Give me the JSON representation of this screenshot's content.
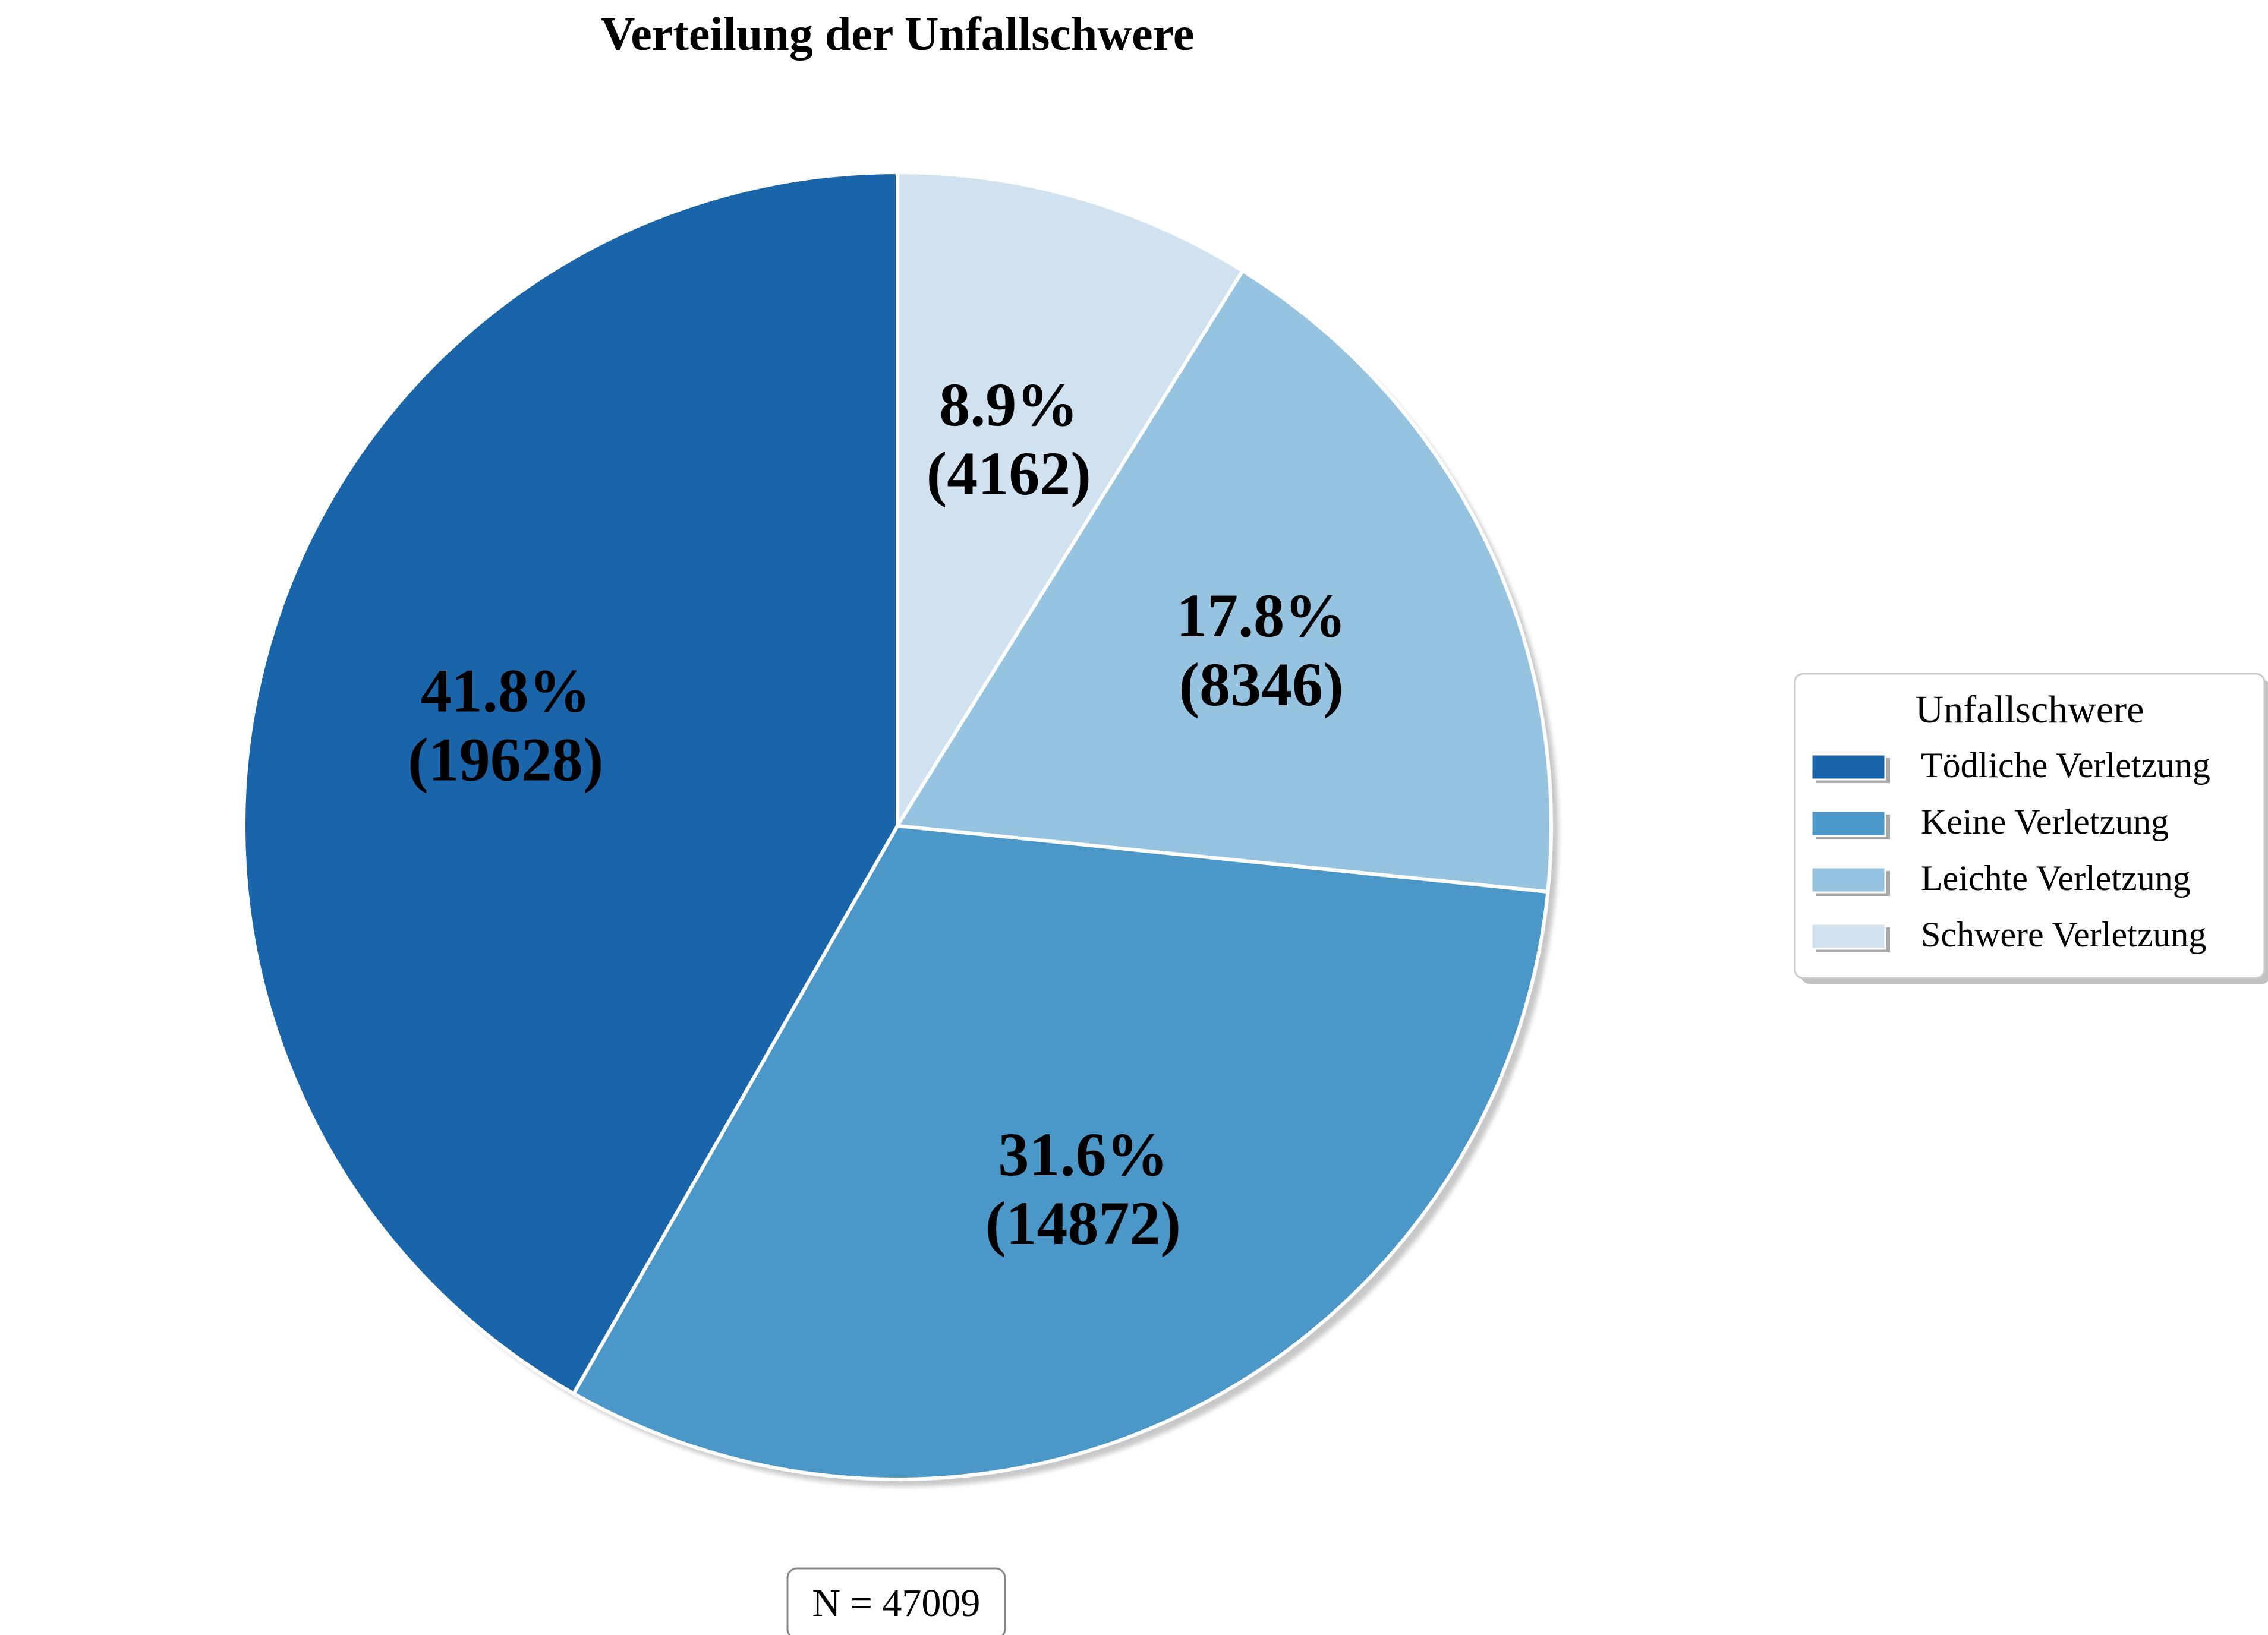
{
  "chart_data": {
    "type": "pie",
    "title": "Verteilung der Unfallschwere",
    "total": 47009,
    "footnote": "N = 47009",
    "slices": [
      {
        "label": "Schwere Verletzung",
        "value": 4162,
        "percent": "8.9%",
        "count_text": "(4162)",
        "color": "#d0e1f0"
      },
      {
        "label": "Leichte Verletzung",
        "value": 8346,
        "percent": "17.8%",
        "count_text": "(8346)",
        "color": "#96c3e0"
      },
      {
        "label": "Keine Verletzung",
        "value": 14872,
        "percent": "31.6%",
        "count_text": "(14872)",
        "color": "#4a97c8"
      },
      {
        "label": "Tödliche Verletzung",
        "value": 19628,
        "percent": "41.8%",
        "count_text": "(19628)",
        "color": "#1a64a9"
      }
    ],
    "start_angle": "12 o'clock",
    "direction": "clockwise",
    "legend": {
      "title": "Unfallschwere",
      "placement": "right",
      "items": [
        {
          "label": "Tödliche Verletzung",
          "color": "#1a64a9"
        },
        {
          "label": "Keine Verletzung",
          "color": "#4a97c8"
        },
        {
          "label": "Leichte Verletzung",
          "color": "#96c3e0"
        },
        {
          "label": "Schwere Verletzung",
          "color": "#d0e1f0"
        }
      ]
    }
  }
}
